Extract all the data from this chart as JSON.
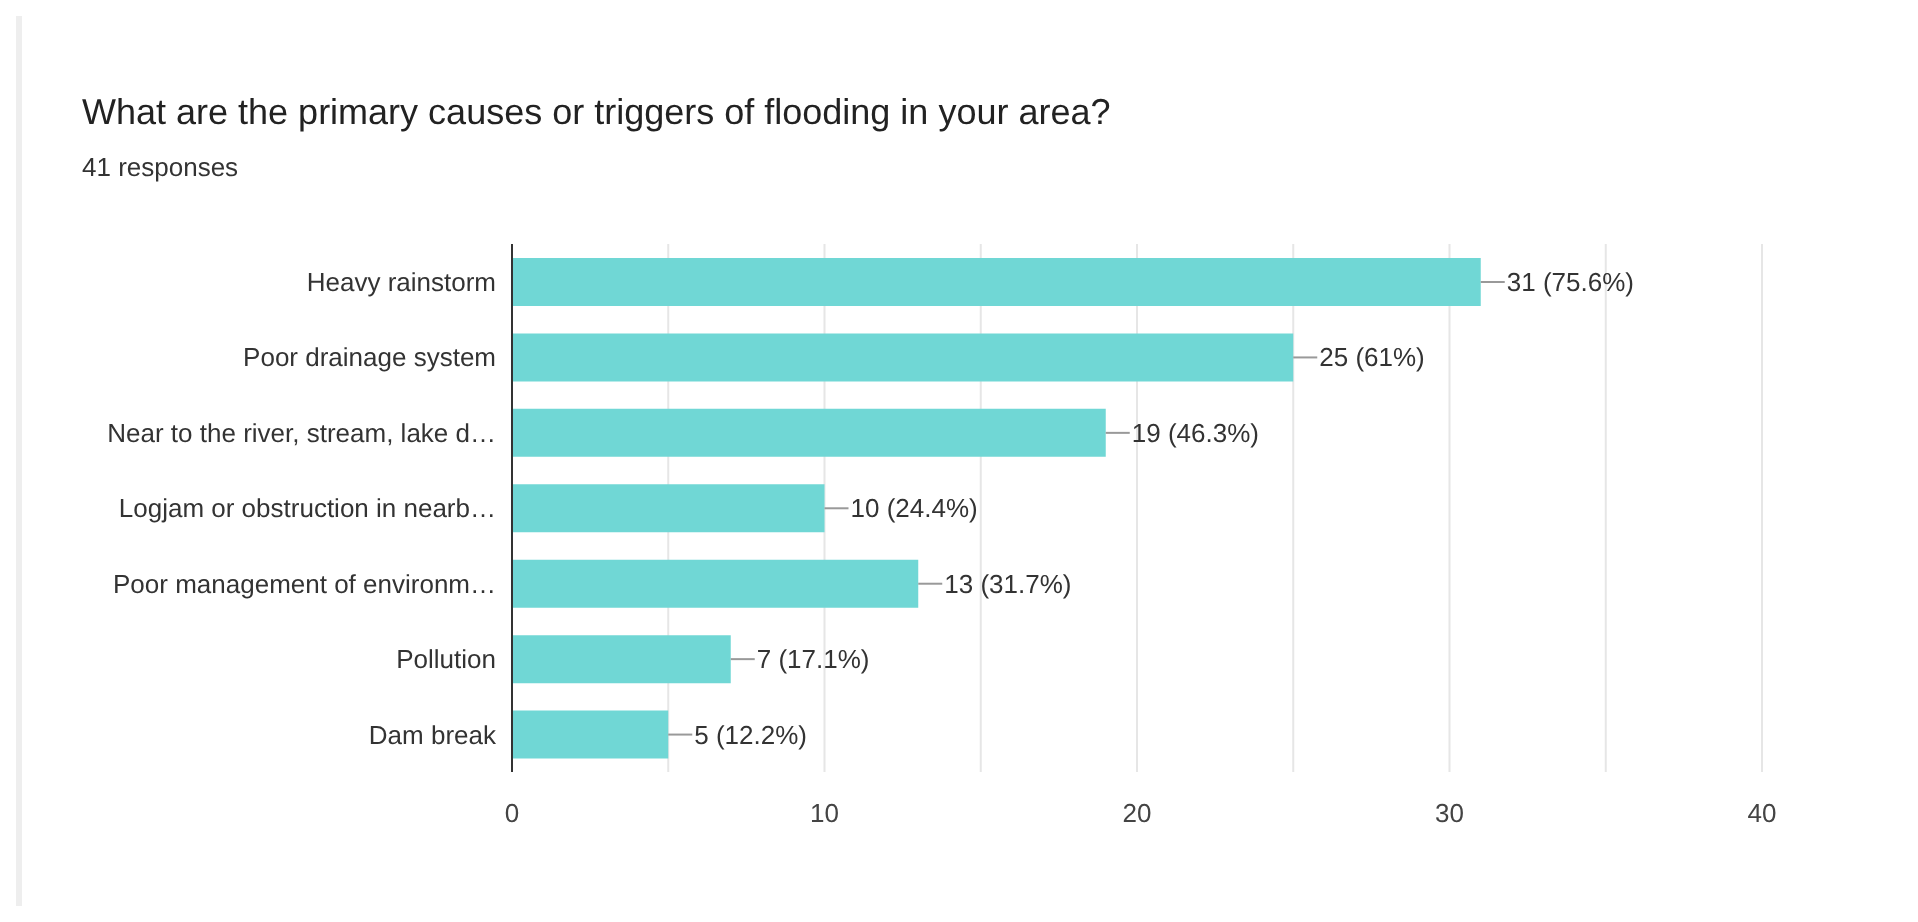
{
  "chart_data": {
    "type": "bar",
    "orientation": "horizontal",
    "title": "What are the primary causes or triggers of flooding in your area?",
    "subtitle": "41 responses",
    "categories": [
      "Heavy rainstorm",
      "Poor drainage system",
      "Near to the river, stream, lake d…",
      "Logjam or obstruction in nearb…",
      "Poor management of environm…",
      "Pollution",
      "Dam break"
    ],
    "values": [
      31,
      25,
      19,
      10,
      13,
      7,
      5
    ],
    "value_labels": [
      "31 (75.6%)",
      "25 (61%)",
      "19 (46.3%)",
      "10 (24.4%)",
      "13 (31.7%)",
      "7 (17.1%)",
      "5 (12.2%)"
    ],
    "color": "#70d7d5",
    "xlim": [
      0,
      40
    ],
    "xticks": [
      0,
      {
        "value": 5,
        "label": null
      },
      10,
      {
        "value": 15,
        "label": null
      },
      20,
      {
        "value": 25,
        "label": null
      },
      30,
      {
        "value": 35,
        "label": null
      },
      40
    ],
    "grid": "x"
  }
}
